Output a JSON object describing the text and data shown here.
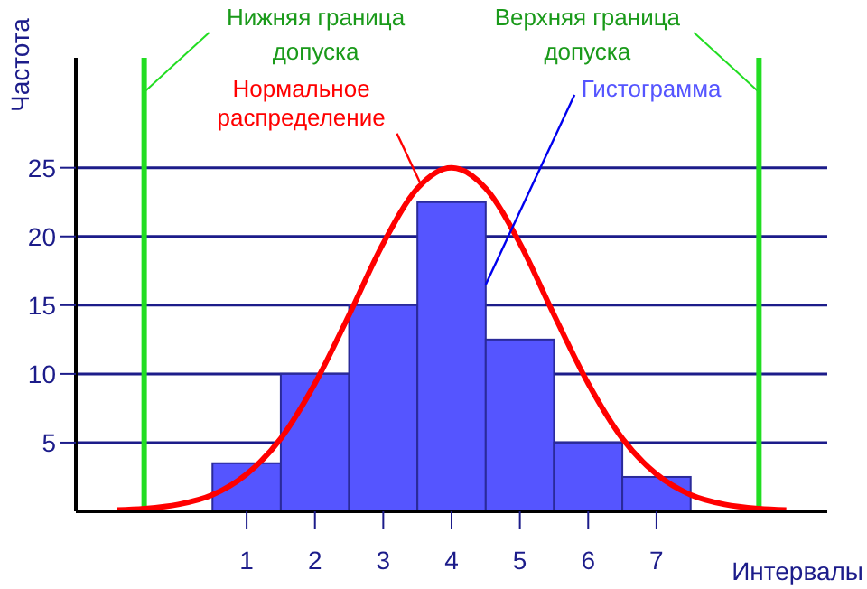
{
  "chart_data": {
    "type": "histogram",
    "xlabel": "Интервалы",
    "ylabel": "Частота",
    "bins": [
      0.5,
      1.5,
      2.5,
      3.5,
      4.5,
      5.5,
      6.5,
      7.5
    ],
    "series": [
      {
        "name": "Гистограмма",
        "color": "#5555ff",
        "values": [
          3.5,
          10,
          15,
          22.5,
          12.5,
          5,
          2.5
        ]
      },
      {
        "name": "Нормальное распределение",
        "type": "line",
        "color": "#ff0000",
        "x": [
          -0.9,
          -0.5,
          0,
          0.5,
          1,
          1.5,
          2,
          2.5,
          3,
          3.5,
          4,
          4.5,
          5,
          5.5,
          6,
          6.5,
          7,
          7.5,
          8,
          8.5,
          8.9
        ],
        "values": [
          0.1,
          0.2,
          0.5,
          1.2,
          2.7,
          5.3,
          9.3,
          14.3,
          19.5,
          23.5,
          25,
          23.5,
          19.5,
          14.3,
          9.3,
          5.3,
          2.7,
          1.2,
          0.5,
          0.2,
          0.1
        ]
      }
    ],
    "xlim": [
      -1.5,
      9.5
    ],
    "xticks": [
      1,
      2,
      3,
      4,
      5,
      6,
      7
    ],
    "ylim": [
      0,
      33
    ],
    "yticks": [
      5,
      10,
      15,
      20,
      25
    ],
    "grid": "y",
    "legend": false,
    "marker": "none",
    "line_style": "solid",
    "ref_lines": [
      {
        "axis": "x",
        "value": -0.5,
        "label": "Нижняя граница допуска",
        "color": "#22dd22"
      },
      {
        "axis": "x",
        "value": 8.5,
        "label": "Верхняя граница допуска",
        "color": "#22dd22"
      }
    ]
  }
}
